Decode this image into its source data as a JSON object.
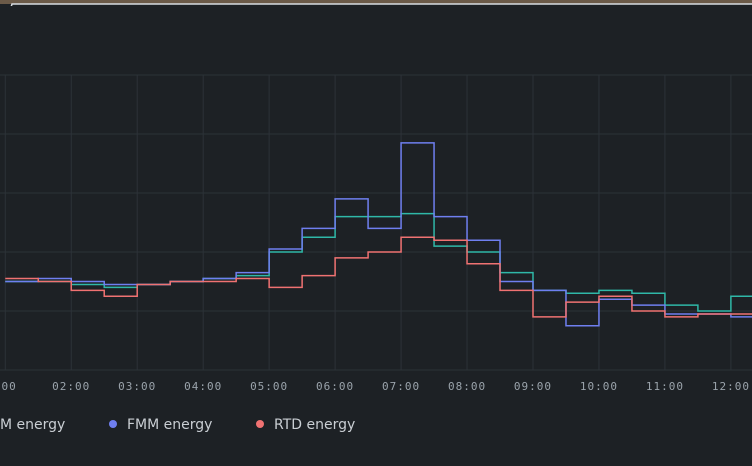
{
  "chart_data": {
    "type": "step-line",
    "x": [
      1,
      1.5,
      2,
      2.5,
      3,
      3.5,
      4,
      4.5,
      5,
      5.5,
      6,
      6.5,
      7,
      7.5,
      8,
      8.5,
      9,
      9.5,
      10,
      10.5,
      11,
      11.5,
      12
    ],
    "series": [
      {
        "name": "M energy",
        "color": "#2fb8a8",
        "values": [
          30,
          30,
          29,
          28,
          29,
          30,
          31,
          32,
          40,
          45,
          52,
          52,
          53,
          42,
          40,
          33,
          27,
          26,
          27,
          26,
          22,
          20,
          25
        ]
      },
      {
        "name": "FMM energy",
        "color": "#6f7ff0",
        "values": [
          30,
          31,
          30,
          29,
          29,
          30,
          31,
          33,
          41,
          48,
          58,
          48,
          77,
          52,
          44,
          30,
          27,
          15,
          24,
          22,
          19,
          19,
          18
        ]
      },
      {
        "name": "RTD energy",
        "color": "#f07272",
        "values": [
          31,
          30,
          27,
          25,
          29,
          30,
          30,
          31,
          28,
          32,
          38,
          40,
          45,
          44,
          36,
          27,
          18,
          23,
          25,
          20,
          18,
          19,
          19
        ]
      }
    ],
    "xlim": [
      0.92,
      12.32
    ],
    "xticks": [
      {
        "value": 1,
        "label": ":00"
      },
      {
        "value": 2,
        "label": "02:00"
      },
      {
        "value": 3,
        "label": "03:00"
      },
      {
        "value": 4,
        "label": "04:00"
      },
      {
        "value": 5,
        "label": "05:00"
      },
      {
        "value": 6,
        "label": "06:00"
      },
      {
        "value": 7,
        "label": "07:00"
      },
      {
        "value": 8,
        "label": "08:00"
      },
      {
        "value": 9,
        "label": "09:00"
      },
      {
        "value": 10,
        "label": "10:00"
      },
      {
        "value": 11,
        "label": "11:00"
      },
      {
        "value": 12,
        "label": "12:00"
      }
    ],
    "ylim": [
      0,
      100
    ],
    "yticks": [
      0,
      20,
      40,
      60,
      80,
      100
    ],
    "grid": true
  }
}
